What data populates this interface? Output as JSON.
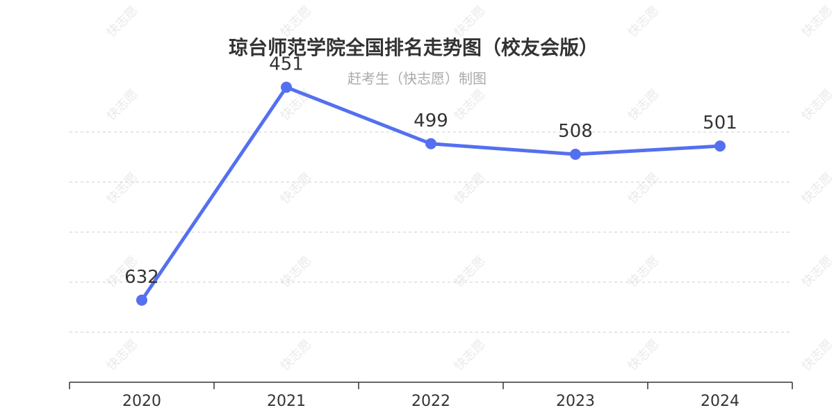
{
  "chart_data": {
    "type": "line",
    "title": "琼台师范学院全国排名走势图（校友会版）",
    "subtitle": "赶考生（快志愿）制图",
    "categories": [
      "2020",
      "2021",
      "2022",
      "2023",
      "2024"
    ],
    "series": [
      {
        "values": [
          632,
          451,
          499,
          508,
          501
        ]
      }
    ],
    "yaxis": {
      "inverted": true,
      "range": [
        430,
        690
      ],
      "grid": true,
      "tick_labels_shown": false
    },
    "xlabel": "",
    "ylabel": "",
    "legend": "none",
    "line_color": "#5470f0",
    "watermark": "快志愿"
  }
}
